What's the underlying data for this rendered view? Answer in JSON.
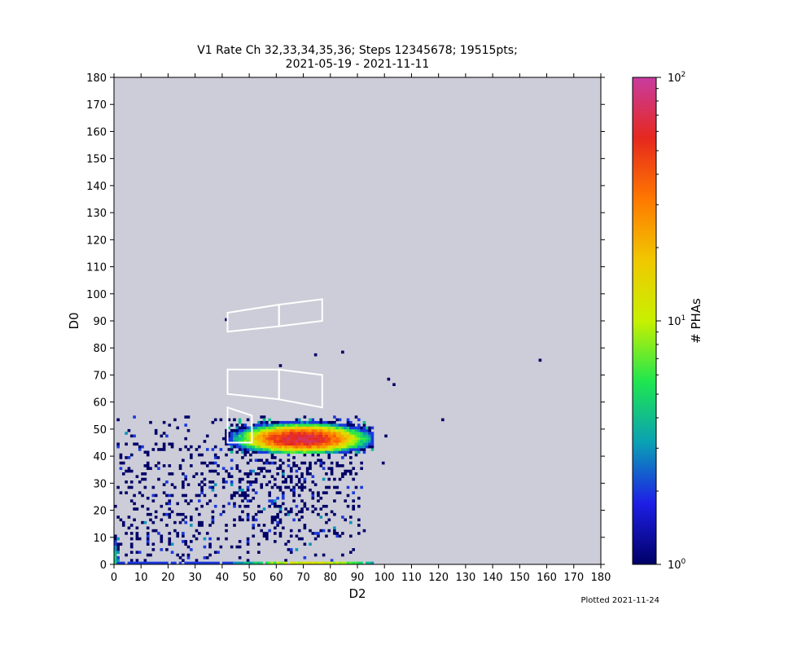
{
  "figure": {
    "title_line1": "V1 Rate Ch 32,33,34,35,36; Steps 12345678; 19515pts;",
    "title_line2": "2021-05-19 - 2021-11-11",
    "footer": "Plotted 2021-11-24"
  },
  "chart_data": {
    "type": "heatmap",
    "xlabel": "D2",
    "ylabel": "D0",
    "xlim": [
      0,
      180
    ],
    "ylim": [
      0,
      180
    ],
    "x_ticks": [
      "0",
      "10",
      "20",
      "30",
      "40",
      "50",
      "60",
      "70",
      "80",
      "90",
      "100",
      "110",
      "120",
      "130",
      "140",
      "150",
      "160",
      "170",
      "180"
    ],
    "y_ticks": [
      "0",
      "10",
      "20",
      "30",
      "40",
      "50",
      "60",
      "70",
      "80",
      "90",
      "100",
      "110",
      "120",
      "130",
      "140",
      "150",
      "160",
      "170",
      "180"
    ],
    "bin_size": 1,
    "background_color": "#cdcdd9",
    "colorbar": {
      "label": "# PHAs",
      "scale": "log",
      "range": [
        1,
        100
      ],
      "tick_bases": [
        "10",
        "10",
        "10"
      ],
      "tick_exponents": [
        "0",
        "1",
        "2"
      ],
      "colormap": [
        "#000066",
        "#1e1ee6",
        "#0aa0b4",
        "#1ee650",
        "#c8f000",
        "#f0c800",
        "#ff7800",
        "#e6281e",
        "#c83ca0"
      ]
    },
    "regions": [
      {
        "points": [
          [
            42,
            93
          ],
          [
            61,
            96
          ],
          [
            61,
            88
          ],
          [
            42,
            86
          ]
        ]
      },
      {
        "points": [
          [
            61,
            96
          ],
          [
            77,
            98
          ],
          [
            77,
            90
          ],
          [
            61,
            88
          ]
        ]
      },
      {
        "points": [
          [
            42,
            72
          ],
          [
            61,
            72
          ],
          [
            61,
            61
          ],
          [
            42,
            63
          ]
        ]
      },
      {
        "points": [
          [
            61,
            72
          ],
          [
            77,
            70
          ],
          [
            77,
            58
          ],
          [
            61,
            61
          ]
        ]
      },
      {
        "points": [
          [
            42,
            58
          ],
          [
            51,
            55
          ],
          [
            51,
            45
          ],
          [
            42,
            45
          ]
        ]
      }
    ],
    "features": {
      "core": {
        "x_range": [
          41,
          95
        ],
        "y_range": [
          41,
          53
        ],
        "center": [
          69,
          46
        ],
        "peak_count": 75
      },
      "scatter_region": {
        "x_range": [
          0,
          92
        ],
        "y_range": [
          0,
          54
        ],
        "density_note": "sparse, denser near D2 40-80, D0 20-40"
      },
      "baseline": {
        "y": 0,
        "x_range": [
          0,
          95
        ],
        "peak_count": 12
      },
      "left_edge": {
        "x": 0,
        "y_range": [
          0,
          10
        ],
        "peak_count": 5
      }
    },
    "isolated_points": [
      {
        "x": 41,
        "y": 90,
        "count": 1
      },
      {
        "x": 61,
        "y": 73,
        "count": 1
      },
      {
        "x": 74,
        "y": 77,
        "count": 1
      },
      {
        "x": 84,
        "y": 78,
        "count": 1
      },
      {
        "x": 101,
        "y": 68,
        "count": 1
      },
      {
        "x": 103,
        "y": 66,
        "count": 1
      },
      {
        "x": 121,
        "y": 53,
        "count": 1
      },
      {
        "x": 157,
        "y": 75,
        "count": 1
      },
      {
        "x": 100,
        "y": 47,
        "count": 1
      },
      {
        "x": 99,
        "y": 37,
        "count": 1
      }
    ]
  }
}
